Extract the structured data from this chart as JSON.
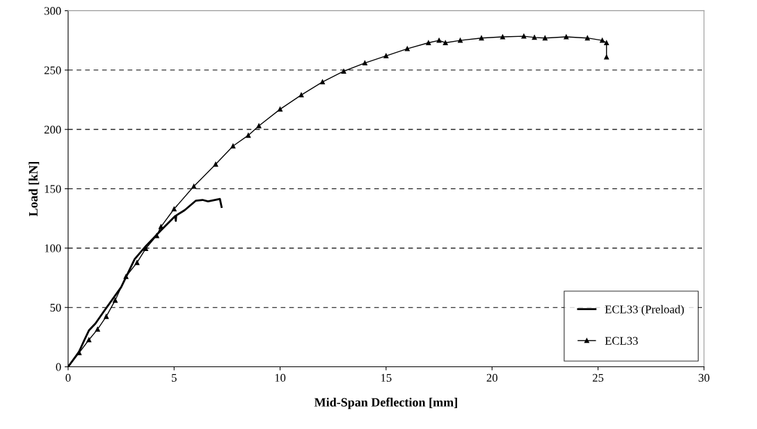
{
  "chart_data": {
    "type": "line",
    "xlabel": "Mid-Span Deflection [mm]",
    "ylabel": "Load [kN]",
    "xlim": [
      0,
      30
    ],
    "ylim": [
      0,
      300
    ],
    "xticks": [
      0,
      5,
      10,
      15,
      20,
      25,
      30
    ],
    "yticks": [
      0,
      50,
      100,
      150,
      200,
      250,
      300
    ],
    "grid": "y",
    "legend": "bottom right",
    "series": [
      {
        "name": "ECL33 (Preload)",
        "color": "#000000",
        "marker": "none",
        "x": [
          0,
          0.52,
          0.77,
          0.98,
          1.29,
          1.7,
          2.5,
          3.14,
          3.66,
          4.38,
          5.05,
          5.08,
          5.1,
          5.5,
          6.03,
          6.34,
          6.6,
          7.16,
          7.24
        ],
        "values": [
          0,
          12.8,
          22.7,
          30.6,
          36.5,
          47,
          67,
          90.7,
          101.6,
          115,
          127,
          123,
          127.5,
          132,
          140,
          140.6,
          139.4,
          141.4,
          134.7
        ]
      },
      {
        "name": "ECL33",
        "color": "#000000",
        "marker": "triangle",
        "x": [
          0,
          0.52,
          0.98,
          1.39,
          1.8,
          2.22,
          2.73,
          3.25,
          3.66,
          4.18,
          4.38,
          5.0,
          5.93,
          6.96,
          7.78,
          8.5,
          9,
          10,
          11,
          12,
          13,
          14,
          15,
          16,
          17,
          17.5,
          17.8,
          18.5,
          19.5,
          20.5,
          21.5,
          22,
          22.5,
          23.5,
          24.5,
          25.2,
          25.4,
          25.4
        ],
        "values": [
          0,
          11.8,
          22.7,
          31.6,
          42.4,
          56,
          76,
          87.8,
          99.6,
          110.5,
          118,
          133,
          152,
          170.6,
          186,
          195,
          203,
          217,
          229,
          240,
          249,
          256,
          262,
          268,
          273,
          275,
          273,
          275,
          277,
          278,
          278.5,
          277.5,
          277,
          278,
          277,
          275,
          273,
          261
        ]
      }
    ]
  }
}
